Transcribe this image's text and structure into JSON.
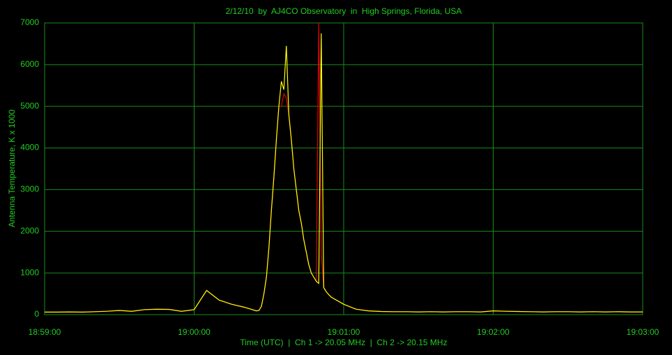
{
  "chart_data": {
    "type": "line",
    "title": "2/12/10  by  AJ4CO Observatory  in  High Springs, Florida, USA",
    "xlabel": "Time (UTC)  |  Ch 1 -> 20.05 MHz  |  Ch 2 -> 20.15 MHz",
    "ylabel": "Antenna Temperature, K x 1000",
    "x": [
      "18:59:00",
      "18:59:05",
      "18:59:10",
      "18:59:15",
      "18:59:20",
      "18:59:25",
      "18:59:30",
      "18:59:35",
      "18:59:40",
      "18:59:45",
      "18:59:50",
      "18:59:55",
      "19:00:00",
      "19:00:05",
      "19:00:10",
      "19:00:15",
      "19:00:20",
      "19:00:25",
      "19:00:26",
      "19:00:27",
      "19:00:28",
      "19:00:29",
      "19:00:30",
      "19:00:31",
      "19:00:32",
      "19:00:33",
      "19:00:34",
      "19:00:35",
      "19:00:36",
      "19:00:37",
      "19:00:38",
      "19:00:39",
      "19:00:40",
      "19:00:41",
      "19:00:42",
      "19:00:43",
      "19:00:44",
      "19:00:45",
      "19:00:46",
      "19:00:47",
      "19:00:48",
      "19:00:49",
      "19:00:50",
      "19:00:51",
      "19:00:52",
      "19:00:53",
      "19:00:54",
      "19:00:55",
      "19:01:00",
      "19:01:05",
      "19:01:10",
      "19:01:15",
      "19:01:20",
      "19:01:25",
      "19:01:30",
      "19:01:35",
      "19:01:40",
      "19:01:45",
      "19:01:50",
      "19:01:55",
      "19:02:00",
      "19:02:05",
      "19:02:10",
      "19:02:15",
      "19:02:20",
      "19:02:25",
      "19:02:30",
      "19:02:35",
      "19:02:40",
      "19:02:45",
      "19:02:50",
      "19:02:55",
      "19:03:00"
    ],
    "series": [
      {
        "color": "#e00000",
        "values": [
          60,
          60,
          65,
          60,
          70,
          80,
          100,
          80,
          120,
          130,
          125,
          80,
          120,
          580,
          350,
          250,
          180,
          90,
          100,
          200,
          500,
          900,
          1600,
          2500,
          3300,
          4200,
          5000,
          5000,
          5300,
          5200,
          4800,
          4200,
          3500,
          3000,
          2500,
          2200,
          1800,
          1500,
          1200,
          1000,
          900,
          800,
          7000,
          1500,
          650,
          550,
          480,
          420,
          250,
          130,
          90,
          75,
          70,
          70,
          65,
          70,
          65,
          70,
          70,
          65,
          90,
          80,
          75,
          70,
          65,
          70,
          70,
          65,
          70,
          65,
          70,
          65,
          65
        ]
      },
      {
        "color": "#ffff00",
        "values": [
          60,
          60,
          65,
          60,
          70,
          80,
          100,
          80,
          120,
          130,
          125,
          80,
          120,
          580,
          350,
          250,
          180,
          90,
          100,
          200,
          500,
          900,
          1600,
          2500,
          3300,
          4200,
          5000,
          5600,
          5400,
          6450,
          4800,
          4200,
          3500,
          3000,
          2500,
          2200,
          1800,
          1500,
          1200,
          1000,
          900,
          800,
          750,
          6750,
          650,
          550,
          480,
          420,
          250,
          130,
          90,
          75,
          70,
          70,
          65,
          70,
          65,
          70,
          70,
          65,
          90,
          80,
          75,
          70,
          65,
          70,
          70,
          65,
          70,
          65,
          70,
          65,
          65
        ]
      }
    ],
    "xlim": [
      "18:59:00",
      "19:03:00"
    ],
    "xticks": [
      "18:59:00",
      "19:00:00",
      "19:01:00",
      "19:02:00",
      "19:03:00"
    ],
    "ylim": [
      0,
      7000
    ],
    "yticks": [
      0,
      1000,
      2000,
      3000,
      4000,
      5000,
      6000,
      7000
    ],
    "grid": true
  }
}
